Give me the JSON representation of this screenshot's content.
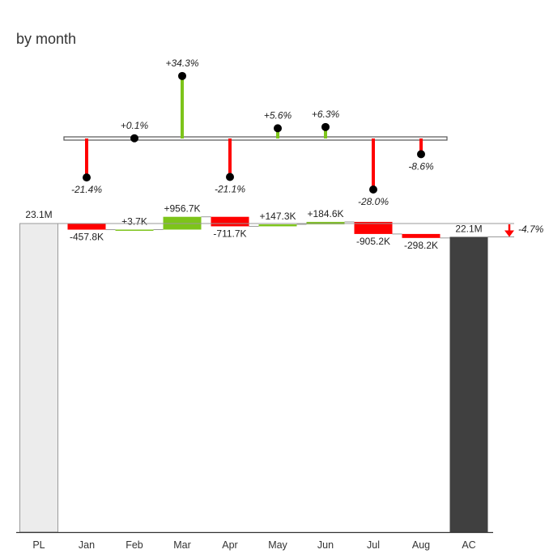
{
  "title": "by month",
  "colors": {
    "positive": "#7dc41a",
    "negative": "#ff0000",
    "baseline_bar": "#ececec",
    "actual_bar": "#404040",
    "axis": "#333333",
    "pin_head": "#000000"
  },
  "chart_data": {
    "type": "waterfall",
    "title": "by month",
    "start": {
      "category": "PL",
      "value": 23.1,
      "label": "23.1M"
    },
    "end": {
      "category": "AC",
      "value": 22.1,
      "label": "22.1M"
    },
    "total_change_label": "-4.7%",
    "steps": [
      {
        "category": "Jan",
        "delta": -0.4578,
        "label": "-457.8K",
        "pct": -21.4,
        "pct_label": "-21.4%"
      },
      {
        "category": "Feb",
        "delta": 0.0037,
        "label": "+3.7K",
        "pct": 0.1,
        "pct_label": "+0.1%"
      },
      {
        "category": "Mar",
        "delta": 0.9567,
        "label": "+956.7K",
        "pct": 34.3,
        "pct_label": "+34.3%"
      },
      {
        "category": "Apr",
        "delta": -0.7117,
        "label": "-711.7K",
        "pct": -21.1,
        "pct_label": "-21.1%"
      },
      {
        "category": "May",
        "delta": 0.1473,
        "label": "+147.3K",
        "pct": 5.6,
        "pct_label": "+5.6%"
      },
      {
        "category": "Jun",
        "delta": 0.1846,
        "label": "+184.6K",
        "pct": 6.3,
        "pct_label": "+6.3%"
      },
      {
        "category": "Jul",
        "delta": -0.9052,
        "label": "-905.2K",
        "pct": -28.0,
        "pct_label": "-28.0%"
      },
      {
        "category": "Aug",
        "delta": -0.2982,
        "label": "-298.2K",
        "pct": -8.6,
        "pct_label": "-8.6%"
      }
    ]
  }
}
